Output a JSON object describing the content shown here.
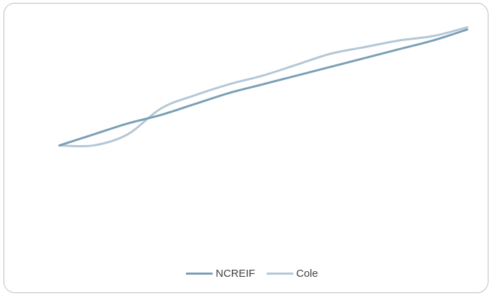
{
  "chart_data": {
    "type": "line",
    "title": "",
    "xlabel": "",
    "ylabel": "",
    "x": [
      0,
      1,
      2,
      3,
      4,
      5,
      6,
      7,
      8,
      9,
      10,
      11,
      12
    ],
    "series": [
      {
        "name": "NCREIF",
        "color": "#7a9fb5",
        "values": [
          1.0,
          1.05,
          1.1,
          1.14,
          1.19,
          1.24,
          1.28,
          1.32,
          1.36,
          1.4,
          1.44,
          1.48,
          1.53
        ]
      },
      {
        "name": "Cole",
        "color": "#b4c7d7",
        "values": [
          1.0,
          1.0,
          1.05,
          1.17,
          1.23,
          1.28,
          1.32,
          1.37,
          1.42,
          1.45,
          1.48,
          1.5,
          1.54
        ]
      }
    ],
    "ylim": [
      0.5,
      1.6
    ],
    "grid": false,
    "legend": "bottom-center"
  }
}
